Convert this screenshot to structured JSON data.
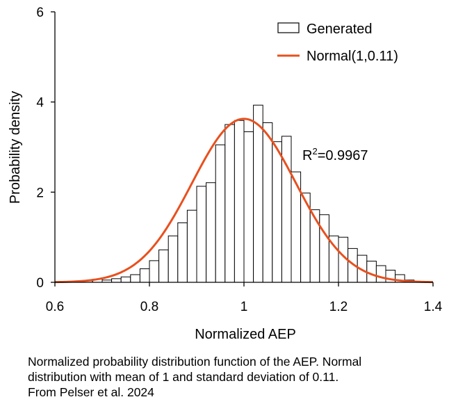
{
  "chart_data": {
    "type": "bar",
    "title": "",
    "xlabel": "Normalized AEP",
    "ylabel": "Probability density",
    "xlim": [
      0.6,
      1.4
    ],
    "ylim": [
      0,
      6
    ],
    "xticks": [
      "0.6",
      "0.8",
      "1",
      "1.2",
      "1.4"
    ],
    "yticks": [
      "0",
      "2",
      "4",
      "6"
    ],
    "grid": false,
    "legend_position": "top-right",
    "bin_width": 0.02,
    "series": [
      {
        "name": "Generated",
        "kind": "histogram",
        "color": "#ffffff",
        "edge_color": "#000000",
        "x": [
          0.65,
          0.67,
          0.69,
          0.71,
          0.73,
          0.75,
          0.77,
          0.79,
          0.81,
          0.83,
          0.85,
          0.87,
          0.89,
          0.91,
          0.93,
          0.95,
          0.97,
          0.99,
          1.01,
          1.03,
          1.05,
          1.07,
          1.09,
          1.11,
          1.13,
          1.15,
          1.17,
          1.19,
          1.21,
          1.23,
          1.25,
          1.27,
          1.29,
          1.31,
          1.33,
          1.35
        ],
        "values": [
          0.02,
          0.03,
          0.07,
          0.05,
          0.08,
          0.12,
          0.17,
          0.3,
          0.48,
          0.72,
          1.03,
          1.32,
          1.6,
          2.13,
          2.21,
          3.05,
          3.5,
          3.59,
          3.34,
          3.93,
          3.54,
          3.12,
          3.24,
          2.45,
          1.98,
          1.61,
          1.5,
          1.03,
          1.0,
          0.75,
          0.6,
          0.47,
          0.37,
          0.27,
          0.17,
          0.05
        ]
      },
      {
        "name": "Normal(1,0.11)",
        "kind": "line",
        "color": "#e8501e",
        "mean": 1,
        "sd": 0.11
      }
    ],
    "annotations": [
      {
        "base": "R",
        "sup": "2",
        "rest": "=0.9967"
      }
    ]
  },
  "caption": {
    "line1": "Normalized probability distribution function of the AEP.  Normal",
    "line2": "distribution with mean of 1 and standard deviation of 0.11.",
    "line3": "From Pelser et al. 2024"
  }
}
